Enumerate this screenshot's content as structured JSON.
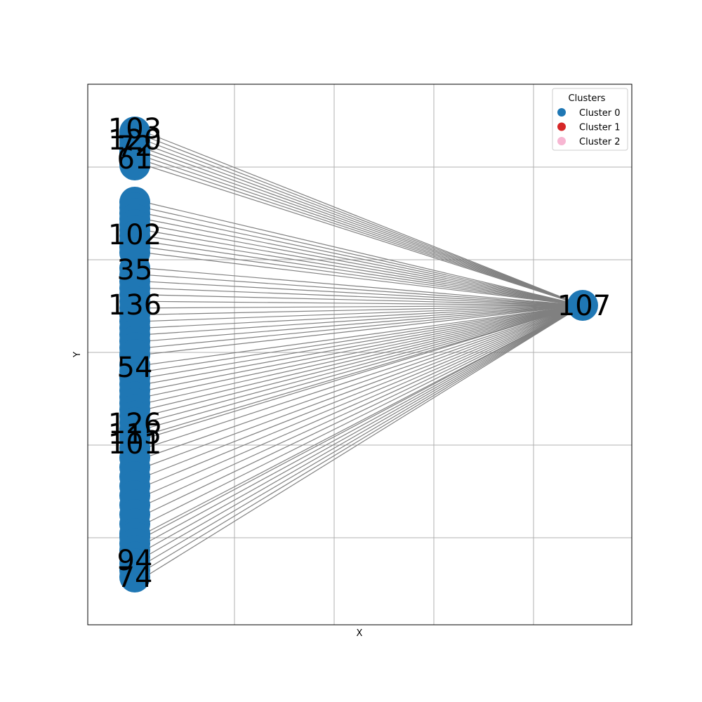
{
  "axes": {
    "xlabel": "X",
    "ylabel": "Y",
    "grid": true
  },
  "legend": {
    "title": "Clusters",
    "placement": "top-right",
    "entries": [
      {
        "label": "Cluster 0",
        "color": "#1f77b4"
      },
      {
        "label": "Cluster 1",
        "color": "#d62728"
      },
      {
        "label": "Cluster 2",
        "color": "#f7b6d2"
      }
    ]
  },
  "colors": {
    "node": "#1f77b4",
    "edge": "#808080",
    "grid": "#b0b0b0"
  },
  "graph": {
    "hub": {
      "label": "107",
      "cluster": 0
    },
    "column_labels_visible": [
      "103",
      "120",
      "72",
      "61",
      "102",
      "35",
      "136",
      "54",
      "126",
      "115",
      "101",
      "94",
      "74"
    ]
  }
}
